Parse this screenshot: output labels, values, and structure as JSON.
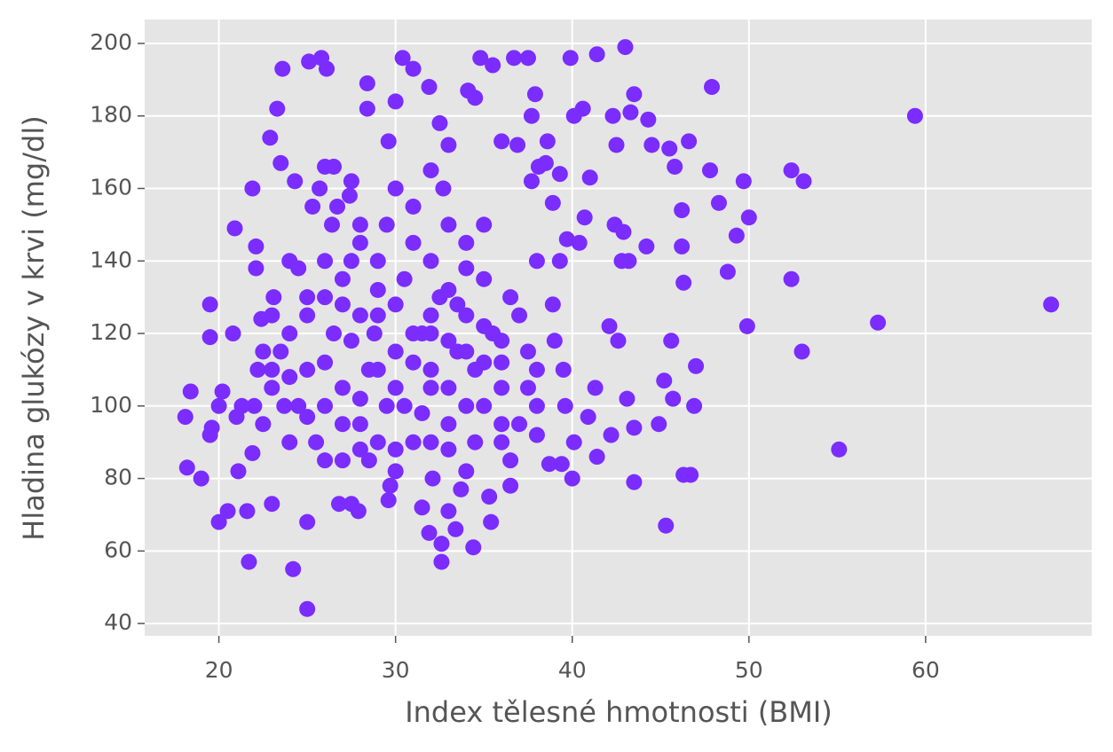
{
  "chart_data": {
    "type": "scatter",
    "x_label": "Index tělesné hmotnosti (BMI)",
    "y_label": "Hladina glukózy v krvi (mg/dl)",
    "color": "#7b2cff",
    "grid": true,
    "xlim": [
      15.8,
      69.4
    ],
    "ylim": [
      36.6,
      206.6
    ],
    "xticks": [
      20,
      30,
      40,
      50,
      60
    ],
    "yticks": [
      40,
      60,
      80,
      100,
      120,
      140,
      160,
      180,
      200
    ],
    "x": [
      67.1,
      59.4,
      57.3,
      55.1,
      53.0,
      53.1,
      52.4,
      52.4,
      50.0,
      49.9,
      49.7,
      49.3,
      48.8,
      48.3,
      47.9,
      47.8,
      47.0,
      46.9,
      46.7,
      46.3,
      46.3,
      46.2,
      46.2,
      46.6,
      45.8,
      45.5,
      45.3,
      45.6,
      45.2,
      45.7,
      44.9,
      44.5,
      44.3,
      44.2,
      43.5,
      43.3,
      43.5,
      43.5,
      43.0,
      43.2,
      43.1,
      42.5,
      42.3,
      42.1,
      42.2,
      42.6,
      42.8,
      41.4,
      41.0,
      40.6,
      40.1,
      39.9,
      40.0,
      40.1,
      41.4,
      41.3,
      40.4,
      40.7,
      42.4,
      42.9,
      40.9,
      18.1,
      18.2,
      18.4,
      19.0,
      19.5,
      19.5,
      19.6,
      20.0,
      20.2,
      20.5,
      20.9,
      20.8,
      21.1,
      21.3,
      21.7,
      21.9,
      22.1,
      22.1,
      21.9,
      21.6,
      22.4,
      22.2,
      23.0,
      22.9,
      23.3,
      23.5,
      23.6,
      23.1,
      23.7,
      24.2,
      24.3,
      24.0,
      25.0,
      25.0,
      25.1,
      25.8,
      26.1,
      25.3,
      25.7,
      26.0,
      26.5,
      26.4,
      26.7,
      27.5,
      27.4,
      26.8,
      27.5,
      27.9,
      28.4,
      28.4,
      28.0,
      28.8,
      29.6,
      29.7,
      29.6,
      30.0,
      30.4,
      31.0,
      31.9,
      31.5,
      31.9,
      32.6,
      32.6,
      33.0,
      32.7,
      32.5,
      33.0,
      34.1,
      34.5,
      34.8,
      35.5,
      36.7,
      37.5,
      36.0,
      36.9,
      37.7,
      37.9,
      38.6,
      38.1,
      38.5,
      37.7,
      39.3,
      38.9,
      39.3,
      39.7,
      38.9,
      39.0,
      39.5,
      39.6,
      39.4,
      38.7,
      36.5,
      35.4,
      34.4,
      35.3,
      33.7,
      32.1,
      33.4,
      22.5,
      23,
      23.5,
      24,
      24.5,
      25,
      25.5,
      26,
      26.5,
      27,
      27.5,
      28,
      28.5,
      29,
      29.5,
      30,
      30.5,
      31,
      31.5,
      32,
      32.5,
      33,
      33.5,
      34,
      34.5,
      35,
      35.5,
      36,
      36.5,
      37,
      37.5,
      38,
      24,
      25,
      26,
      27,
      28,
      29,
      30,
      31,
      32,
      33,
      34,
      35,
      36,
      37,
      38,
      23,
      24.5,
      26,
      27.5,
      29,
      30.5,
      32,
      33.5,
      35,
      36.5,
      38,
      22.5,
      25,
      27,
      28.5,
      30,
      31.5,
      33,
      34.5,
      36,
      37.5,
      29,
      31,
      33,
      35,
      28,
      30,
      32,
      34,
      36,
      26,
      24,
      27,
      29.5,
      31,
      33,
      35,
      30,
      32,
      34,
      28,
      26,
      28,
      30,
      32,
      34,
      36,
      38,
      31,
      32,
      33,
      34,
      29,
      27,
      25,
      23,
      21,
      20,
      19.5,
      22
    ],
    "values": [
      128,
      180,
      123,
      88,
      115,
      162,
      135,
      165,
      152,
      122,
      162,
      147,
      137,
      156,
      188,
      165,
      111,
      100,
      81,
      81,
      134,
      154,
      144,
      173,
      166,
      171,
      67,
      118,
      107,
      102,
      95,
      172,
      179,
      144,
      186,
      181,
      79,
      94,
      199,
      140,
      102,
      172,
      180,
      122,
      92,
      118,
      140,
      197,
      163,
      182,
      180,
      196,
      80,
      90,
      86,
      105,
      145,
      152,
      150,
      148,
      97,
      97,
      83,
      104,
      80,
      128,
      119,
      94,
      68,
      104,
      71,
      149,
      120,
      82,
      100,
      57,
      160,
      144,
      138,
      87,
      71,
      124,
      110,
      73,
      174,
      182,
      167,
      193,
      130,
      100,
      55,
      162,
      140,
      44,
      68,
      195,
      196,
      193,
      155,
      160,
      166,
      166,
      150,
      155,
      162,
      158,
      73,
      73,
      71,
      189,
      182,
      145,
      120,
      173,
      78,
      74,
      184,
      196,
      193,
      188,
      72,
      65,
      57,
      62,
      71,
      160,
      178,
      172,
      187,
      185,
      196,
      194,
      196,
      196,
      173,
      172,
      180,
      186,
      173,
      166,
      167,
      162,
      164,
      156,
      140,
      146,
      128,
      118,
      110,
      100,
      84,
      84,
      78,
      68,
      61,
      75,
      77,
      80,
      66,
      95,
      105,
      115,
      120,
      100,
      110,
      90,
      130,
      120,
      105,
      140,
      95,
      110,
      125,
      100,
      115,
      135,
      90,
      120,
      105,
      130,
      95,
      115,
      125,
      110,
      100,
      120,
      105,
      130,
      95,
      115,
      110,
      90,
      130,
      100,
      85,
      125,
      140,
      88,
      145,
      110,
      88,
      100,
      135,
      90,
      125,
      100,
      125,
      138,
      140,
      118,
      90,
      100,
      140,
      128,
      112,
      85,
      140,
      115,
      97,
      128,
      85,
      128,
      98,
      118,
      90,
      118,
      105,
      110,
      112,
      105,
      122,
      102,
      105,
      120,
      115,
      112,
      112,
      108,
      95,
      150,
      155,
      150,
      150,
      160,
      165,
      145,
      150,
      85,
      88,
      82,
      90,
      82,
      95,
      92,
      120,
      125,
      132,
      138,
      132,
      135,
      125,
      110,
      97,
      100,
      92,
      100
    ]
  }
}
